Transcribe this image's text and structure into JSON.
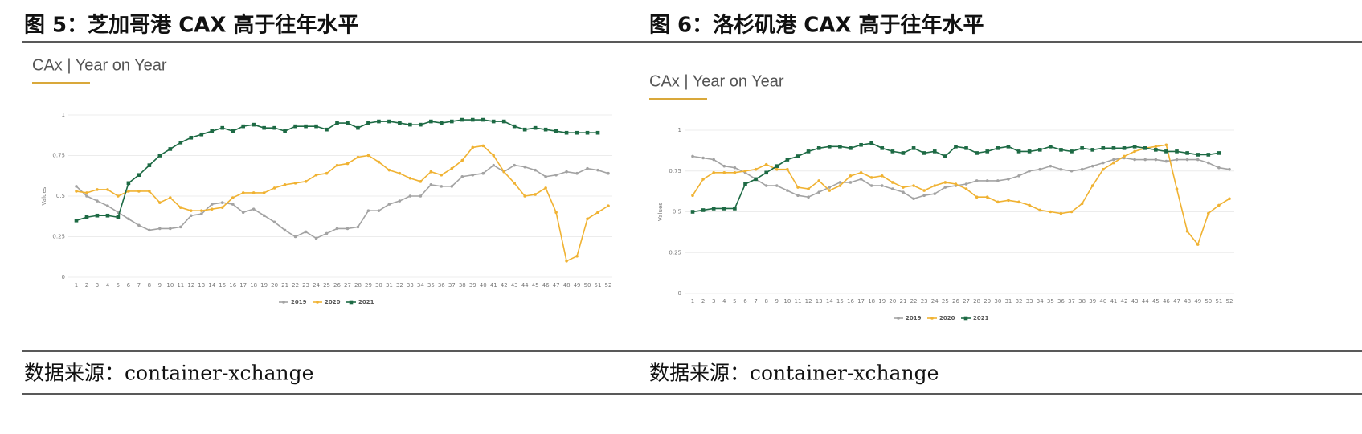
{
  "panels": [
    {
      "heading": "图 5：芝加哥港 CAX 高于往年水平",
      "source": "数据来源：container-xchange"
    },
    {
      "heading": "图 6：洛杉矶港 CAX 高于往年水平",
      "source": "数据来源：container-xchange"
    }
  ],
  "chart_data": [
    {
      "type": "line",
      "title": "CAx | Year on Year",
      "y_label": "Values",
      "categories": [
        "1",
        "2",
        "3",
        "4",
        "5",
        "6",
        "7",
        "8",
        "9",
        "10",
        "11",
        "12",
        "13",
        "14",
        "15",
        "16",
        "17",
        "18",
        "19",
        "20",
        "21",
        "22",
        "23",
        "24",
        "25",
        "26",
        "27",
        "28",
        "29",
        "30",
        "31",
        "32",
        "33",
        "34",
        "35",
        "36",
        "37",
        "38",
        "39",
        "40",
        "41",
        "42",
        "43",
        "44",
        "45",
        "46",
        "47",
        "48",
        "49",
        "50",
        "51",
        "52"
      ],
      "ylim": [
        0,
        1
      ],
      "yticks": [
        0,
        0.25,
        0.5,
        0.75,
        1
      ],
      "grid": true,
      "legend": "bottom",
      "series": [
        {
          "name": "2019",
          "color": "#a3a3a3",
          "marker": "circle",
          "values": [
            0.56,
            0.5,
            0.47,
            0.44,
            0.4,
            0.36,
            0.32,
            0.29,
            0.3,
            0.3,
            0.31,
            0.38,
            0.39,
            0.45,
            0.46,
            0.45,
            0.4,
            0.42,
            0.38,
            0.34,
            0.29,
            0.25,
            0.28,
            0.24,
            0.27,
            0.3,
            0.3,
            0.31,
            0.41,
            0.41,
            0.45,
            0.47,
            0.5,
            0.5,
            0.57,
            0.56,
            0.56,
            0.62,
            0.63,
            0.64,
            0.69,
            0.65,
            0.69,
            0.68,
            0.66,
            0.62,
            0.63,
            0.65,
            0.64,
            0.67,
            0.66,
            0.64
          ]
        },
        {
          "name": "2020",
          "color": "#f0b232",
          "marker": "circle",
          "values": [
            0.53,
            0.52,
            0.54,
            0.54,
            0.5,
            0.53,
            0.53,
            0.53,
            0.46,
            0.49,
            0.43,
            0.41,
            0.41,
            0.42,
            0.43,
            0.49,
            0.52,
            0.52,
            0.52,
            0.55,
            0.57,
            0.58,
            0.59,
            0.63,
            0.64,
            0.69,
            0.7,
            0.74,
            0.75,
            0.71,
            0.66,
            0.64,
            0.61,
            0.59,
            0.65,
            0.63,
            0.67,
            0.72,
            0.8,
            0.81,
            0.75,
            0.65,
            0.58,
            0.5,
            0.51,
            0.55,
            0.4,
            0.1,
            0.13,
            0.36,
            0.4,
            0.44
          ]
        },
        {
          "name": "2021",
          "color": "#1d6a44",
          "marker": "square",
          "values": [
            0.35,
            0.37,
            0.38,
            0.38,
            0.37,
            0.58,
            0.63,
            0.69,
            0.75,
            0.79,
            0.83,
            0.86,
            0.88,
            0.9,
            0.92,
            0.9,
            0.93,
            0.94,
            0.92,
            0.92,
            0.9,
            0.93,
            0.93,
            0.93,
            0.91,
            0.95,
            0.95,
            0.92,
            0.95,
            0.96,
            0.96,
            0.95,
            0.94,
            0.94,
            0.96,
            0.95,
            0.96,
            0.97,
            0.97,
            0.97,
            0.96,
            0.96,
            0.93,
            0.91,
            0.92,
            0.91,
            0.9,
            0.89,
            0.89,
            0.89,
            0.89,
            null
          ]
        }
      ]
    },
    {
      "type": "line",
      "title": "CAx | Year on Year",
      "y_label": "Values",
      "categories": [
        "1",
        "2",
        "3",
        "4",
        "5",
        "6",
        "7",
        "8",
        "9",
        "10",
        "11",
        "12",
        "13",
        "14",
        "15",
        "16",
        "17",
        "18",
        "19",
        "20",
        "21",
        "22",
        "23",
        "24",
        "25",
        "26",
        "27",
        "28",
        "29",
        "30",
        "31",
        "32",
        "33",
        "34",
        "35",
        "36",
        "37",
        "38",
        "39",
        "40",
        "41",
        "42",
        "43",
        "44",
        "45",
        "46",
        "47",
        "48",
        "49",
        "50",
        "51",
        "52"
      ],
      "ylim": [
        0,
        1
      ],
      "yticks": [
        0,
        0.25,
        0.5,
        0.75,
        1
      ],
      "grid": true,
      "legend": "bottom",
      "series": [
        {
          "name": "2019",
          "color": "#a3a3a3",
          "marker": "circle",
          "values": [
            0.84,
            0.83,
            0.82,
            0.78,
            0.77,
            0.74,
            0.7,
            0.66,
            0.66,
            0.63,
            0.6,
            0.59,
            0.62,
            0.65,
            0.68,
            0.68,
            0.7,
            0.66,
            0.66,
            0.64,
            0.62,
            0.58,
            0.6,
            0.61,
            0.65,
            0.66,
            0.67,
            0.69,
            0.69,
            0.69,
            0.7,
            0.72,
            0.75,
            0.76,
            0.78,
            0.76,
            0.75,
            0.76,
            0.78,
            0.8,
            0.82,
            0.83,
            0.82,
            0.82,
            0.82,
            0.81,
            0.82,
            0.82,
            0.82,
            0.8,
            0.77,
            0.76
          ]
        },
        {
          "name": "2020",
          "color": "#f0b232",
          "marker": "circle",
          "values": [
            0.6,
            0.7,
            0.74,
            0.74,
            0.74,
            0.75,
            0.76,
            0.79,
            0.76,
            0.76,
            0.65,
            0.64,
            0.69,
            0.63,
            0.66,
            0.72,
            0.74,
            0.71,
            0.72,
            0.68,
            0.65,
            0.66,
            0.63,
            0.66,
            0.68,
            0.67,
            0.64,
            0.59,
            0.59,
            0.56,
            0.57,
            0.56,
            0.54,
            0.51,
            0.5,
            0.49,
            0.5,
            0.55,
            0.66,
            0.76,
            0.8,
            0.84,
            0.87,
            0.89,
            0.9,
            0.91,
            0.64,
            0.38,
            0.3,
            0.49,
            0.54,
            0.58
          ]
        },
        {
          "name": "2021",
          "color": "#1d6a44",
          "marker": "square",
          "values": [
            0.5,
            0.51,
            0.52,
            0.52,
            0.52,
            0.67,
            0.7,
            0.74,
            0.78,
            0.82,
            0.84,
            0.87,
            0.89,
            0.9,
            0.9,
            0.89,
            0.91,
            0.92,
            0.89,
            0.87,
            0.86,
            0.89,
            0.86,
            0.87,
            0.84,
            0.9,
            0.89,
            0.86,
            0.87,
            0.89,
            0.9,
            0.87,
            0.87,
            0.88,
            0.9,
            0.88,
            0.87,
            0.89,
            0.88,
            0.89,
            0.89,
            0.89,
            0.9,
            0.89,
            0.88,
            0.87,
            0.87,
            0.86,
            0.85,
            0.85,
            0.86,
            null
          ]
        }
      ]
    }
  ]
}
